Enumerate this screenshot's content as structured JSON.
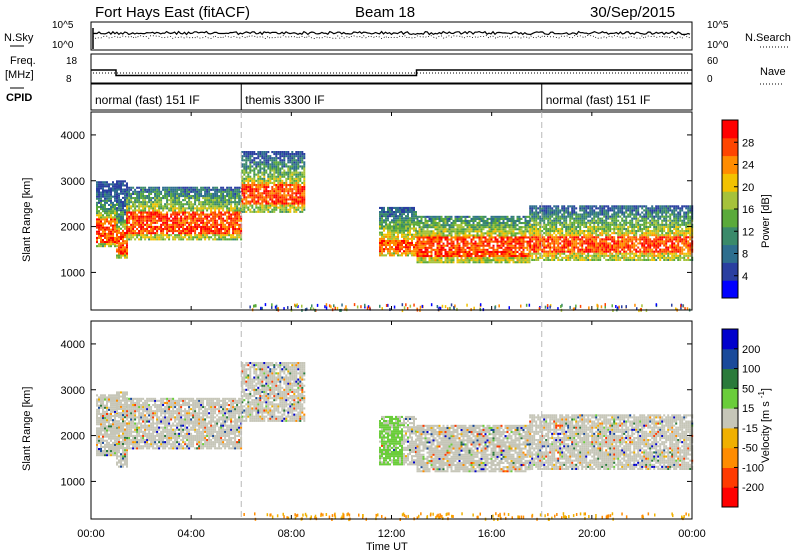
{
  "header": {
    "title": "Fort Hays East (fitACF)",
    "beam": "Beam 18",
    "date": "30/Sep/2015"
  },
  "status_panels": {
    "nsky_label": "N.Sky",
    "nsearch_label": "N.Search",
    "freq_label_line1": "Freq.",
    "freq_label_line2": "[MHz]",
    "nave_label": "Nave",
    "cpid_label": "CPID",
    "nsky_ticks": [
      "10^5",
      "10^0"
    ],
    "nsearch_ticks": [
      "10^5",
      "10^0"
    ],
    "freq_ticks": [
      "18",
      "8"
    ],
    "nave_ticks": [
      "60",
      "0"
    ],
    "modes": [
      {
        "label": "normal (fast) 151 IF",
        "start_hour": 0,
        "end_hour": 6
      },
      {
        "label": "themis 3300 IF",
        "start_hour": 6,
        "end_hour": 18
      },
      {
        "label": "normal (fast) 151 IF",
        "start_hour": 18,
        "end_hour": 24
      }
    ],
    "freq_steps": [
      {
        "start_hour": 0,
        "end_hour": 1.0,
        "mhz": 12.4
      },
      {
        "start_hour": 1.0,
        "end_hour": 13.0,
        "mhz": 10.2
      },
      {
        "start_hour": 13.0,
        "end_hour": 24,
        "mhz": 12.4
      }
    ]
  },
  "time_axis": {
    "label": "Time UT",
    "ticks": [
      "00:00",
      "04:00",
      "08:00",
      "12:00",
      "16:00",
      "20:00",
      "00:00"
    ],
    "tick_hours": [
      0,
      4,
      8,
      12,
      16,
      20,
      24
    ],
    "mode_change_hours": [
      6,
      18
    ]
  },
  "colors": {
    "power": [
      "#0000ff",
      "#2a3fa0",
      "#2e6e8e",
      "#3a8a6a",
      "#5aaa3a",
      "#a6c23a",
      "#f2c200",
      "#ff8c00",
      "#ff4500",
      "#ff0000"
    ],
    "velocity": [
      "#0000cc",
      "#1a4a9a",
      "#2a7a3a",
      "#6acd3a",
      "#c6c6b8",
      "#f0b000",
      "#ff8c00",
      "#ff3a00",
      "#ff0000"
    ],
    "ground_scatter": "#c6c6b8",
    "dashed_line": "#b8b8b8"
  },
  "chart_data": [
    {
      "type": "heatmap",
      "name": "power-panel",
      "ylabel": "Slant Range [km]",
      "xlabel": "Time UT",
      "xlim": [
        0,
        24
      ],
      "ylim": [
        180,
        4500
      ],
      "yticks": [
        1000,
        2000,
        3000,
        4000
      ],
      "colorbar": {
        "label": "Power [dB]",
        "range": [
          0,
          32
        ],
        "ticks": [
          "4",
          "8",
          "12",
          "16",
          "20",
          "24",
          "28"
        ]
      },
      "echo_regions": [
        {
          "t0": 0.2,
          "t1": 1.0,
          "low": 1550,
          "high": 2950,
          "core_low": 1600,
          "core_high": 2150
        },
        {
          "t0": 1.0,
          "t1": 1.4,
          "low": 1300,
          "high": 3000,
          "core_low": 1350,
          "core_high": 1900
        },
        {
          "t0": 1.4,
          "t1": 6.0,
          "low": 1700,
          "high": 2850,
          "core_low": 1800,
          "core_high": 2300
        },
        {
          "t0": 6.0,
          "t1": 8.5,
          "low": 2300,
          "high": 3650,
          "core_low": 2450,
          "core_high": 2900
        },
        {
          "t0": 11.5,
          "t1": 13.0,
          "low": 1350,
          "high": 2400,
          "core_low": 1400,
          "core_high": 1700
        },
        {
          "t0": 13.0,
          "t1": 17.5,
          "low": 1200,
          "high": 2200,
          "core_low": 1300,
          "core_high": 1750
        },
        {
          "t0": 17.5,
          "t1": 24.0,
          "low": 1250,
          "high": 2450,
          "core_low": 1400,
          "core_high": 1750
        }
      ]
    },
    {
      "type": "heatmap",
      "name": "velocity-panel",
      "ylabel": "Slant Range [km]",
      "xlabel": "Time UT",
      "xlim": [
        0,
        24
      ],
      "ylim": [
        180,
        4500
      ],
      "yticks": [
        1000,
        2000,
        3000,
        4000
      ],
      "colorbar": {
        "label": "Velocity [m s^-1]",
        "ticks": [
          "200",
          "100",
          "50",
          "15",
          "-15",
          "-50",
          "-100",
          "-200"
        ]
      },
      "echo_regions": [
        {
          "t0": 0.2,
          "t1": 1.0,
          "low": 1550,
          "high": 2900
        },
        {
          "t0": 1.0,
          "t1": 1.4,
          "low": 1300,
          "high": 2950
        },
        {
          "t0": 1.4,
          "t1": 6.0,
          "low": 1700,
          "high": 2800
        },
        {
          "t0": 6.0,
          "t1": 8.5,
          "low": 2300,
          "high": 3600
        },
        {
          "t0": 11.5,
          "t1": 13.0,
          "low": 1350,
          "high": 2400
        },
        {
          "t0": 13.0,
          "t1": 17.5,
          "low": 1200,
          "high": 2200
        },
        {
          "t0": 17.5,
          "t1": 24.0,
          "low": 1250,
          "high": 2450
        }
      ]
    }
  ]
}
